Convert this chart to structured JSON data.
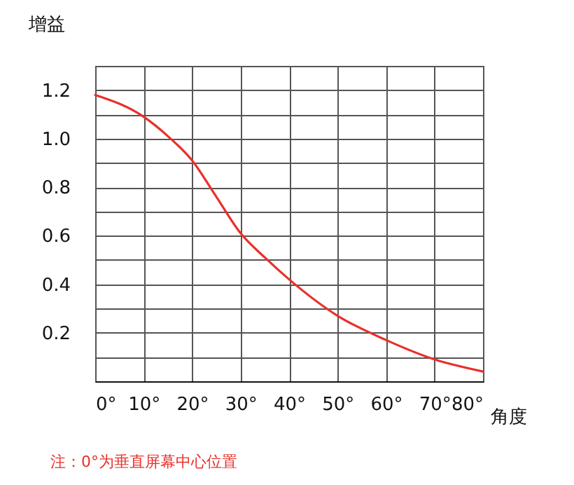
{
  "chart_data": {
    "type": "line",
    "xlabel": "角度",
    "ylabel": "增益",
    "x": [
      0,
      10,
      15,
      20,
      25,
      30,
      35,
      40,
      50,
      60,
      70,
      80
    ],
    "series": [
      {
        "color": "#e8302a",
        "values": [
          1.18,
          1.09,
          1.01,
          0.91,
          0.76,
          0.61,
          0.51,
          0.42,
          0.27,
          0.17,
          0.09,
          0.04
        ]
      }
    ],
    "xlim": [
      0,
      80
    ],
    "ylim": [
      0,
      1.3
    ],
    "xticks": [
      {
        "value": 0,
        "label": "0°"
      },
      {
        "value": 10,
        "label": "10°"
      },
      {
        "value": 20,
        "label": "20°"
      },
      {
        "value": 30,
        "label": "30°"
      },
      {
        "value": 40,
        "label": "40°"
      },
      {
        "value": 50,
        "label": "50°"
      },
      {
        "value": 60,
        "label": "60°"
      },
      {
        "value": 70,
        "label": "70°"
      },
      {
        "value": 80,
        "label": "80°"
      }
    ],
    "yticks": [
      {
        "value": 0,
        "label": null
      },
      {
        "value": 0.1,
        "label": null
      },
      {
        "value": 0.2,
        "label": "0.2"
      },
      {
        "value": 0.3,
        "label": null
      },
      {
        "value": 0.4,
        "label": "0.4"
      },
      {
        "value": 0.5,
        "label": null
      },
      {
        "value": 0.6,
        "label": "0.6"
      },
      {
        "value": 0.7,
        "label": null
      },
      {
        "value": 0.8,
        "label": "0.8"
      },
      {
        "value": 0.9,
        "label": null
      },
      {
        "value": 1.0,
        "label": "1.0"
      },
      {
        "value": 1.1,
        "label": null
      },
      {
        "value": 1.2,
        "label": "1.2"
      },
      {
        "value": 1.3,
        "label": null
      }
    ],
    "grid": true,
    "marker": "none",
    "line_style": "solid",
    "annotations": [
      "注：0°为垂直屏幕中心位置"
    ]
  }
}
